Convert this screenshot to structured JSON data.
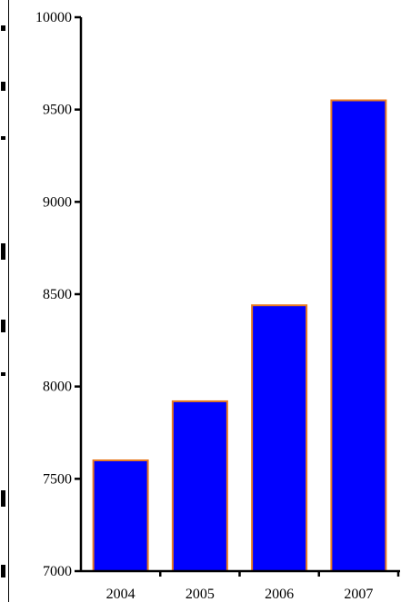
{
  "chart_data": {
    "type": "bar",
    "title": "",
    "xlabel": "",
    "ylabel": "",
    "categories": [
      "2004",
      "2005",
      "2006",
      "2007"
    ],
    "values": [
      7600,
      7920,
      8440,
      9550
    ],
    "ylim": [
      7000,
      10000
    ],
    "yticks": [
      "10000",
      "9500",
      "9000",
      "8500",
      "8000",
      "7500",
      "7000"
    ],
    "grid": false,
    "legend": "none",
    "colors": {
      "bar_fill": "#0000ff",
      "bar_stroke": "#e87b22",
      "axis": "#000000"
    }
  }
}
